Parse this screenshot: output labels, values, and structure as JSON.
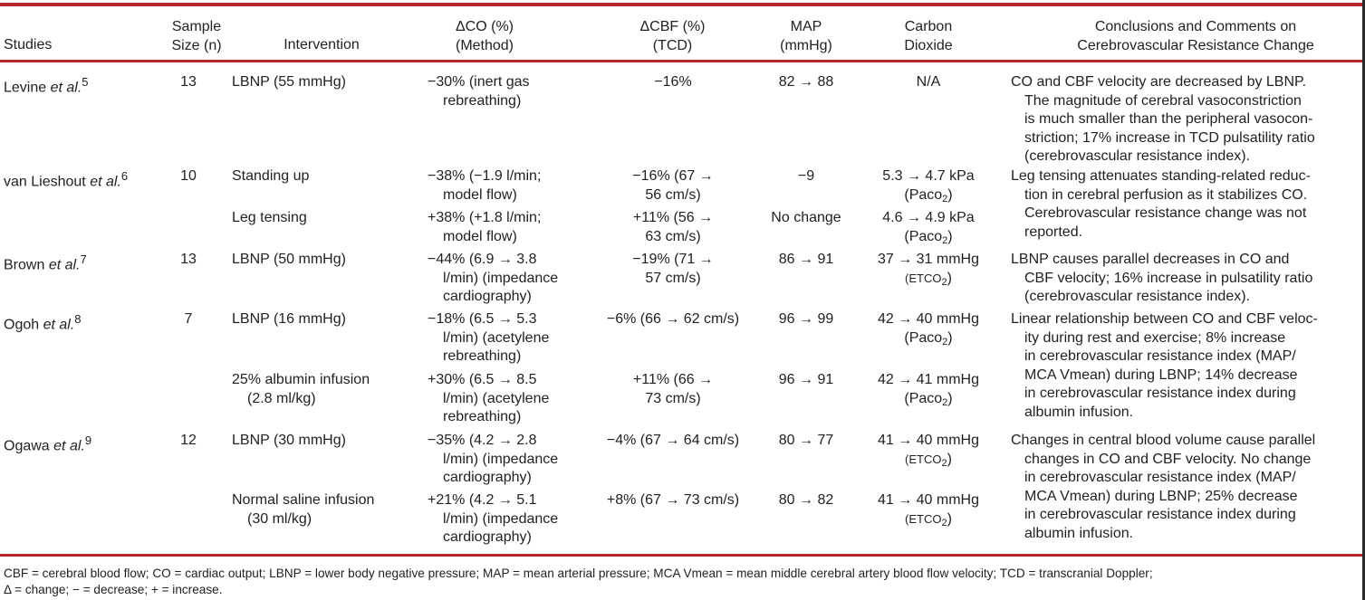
{
  "headers": {
    "studies": "Studies",
    "sample_1": "Sample",
    "sample_2": "Size (n)",
    "intervention": "Intervention",
    "co_1": "ΔCO (%)",
    "co_2": "(Method)",
    "cbf_1": "ΔCBF (%)",
    "cbf_2": "(TCD)",
    "map_1": "MAP",
    "map_2": "(mmHg)",
    "co2_1": "Carbon",
    "co2_2": "Dioxide",
    "concl_1": "Conclusions and Comments on",
    "concl_2": "Cerebrovascular Resistance Change"
  },
  "studies": [
    {
      "name": "Levine",
      "etal": "et al.",
      "ref": "5",
      "n": "13"
    },
    {
      "name": "van Lieshout",
      "etal": "et al.",
      "ref": "6",
      "n": "10"
    },
    {
      "name": "Brown",
      "etal": "et al.",
      "ref": "7",
      "n": "13"
    },
    {
      "name": "Ogoh",
      "etal": "et al.",
      "ref": "8",
      "n": "7"
    },
    {
      "name": "Ogawa",
      "etal": "et al.",
      "ref": "9",
      "n": "12"
    }
  ],
  "rows": [
    {
      "intervention": [
        "LBNP (55 mmHg)"
      ],
      "co": [
        "−30% (inert gas",
        "rebreathing)"
      ],
      "cbf": [
        "−16%"
      ],
      "map": "82 → 88",
      "co2": "N/A",
      "co2_method": ""
    },
    {
      "intervention": [
        "Standing up"
      ],
      "co": [
        "−38% (−1.9 l/min;",
        "model flow)"
      ],
      "cbf": [
        "−16% (67 →",
        "56 cm/s)"
      ],
      "map": "−9",
      "co2": "5.3 → 4.7 kPa",
      "co2_method": "(Paco",
      "co2_sub": "2",
      "co2_close": ")"
    },
    {
      "intervention": [
        "Leg tensing"
      ],
      "co": [
        "+38% (+1.8 l/min;",
        "model flow)"
      ],
      "cbf": [
        "+11% (56 →",
        "63 cm/s)"
      ],
      "map": "No change",
      "co2": "4.6 → 4.9 kPa",
      "co2_method": "(Paco",
      "co2_sub": "2",
      "co2_close": ")"
    },
    {
      "intervention": [
        "LBNP (50 mmHg)"
      ],
      "co": [
        "−44% (6.9 → 3.8",
        "l/min) (impedance",
        "cardiography)"
      ],
      "cbf": [
        "−19% (71 →",
        "57 cm/s)"
      ],
      "map": "86 → 91",
      "co2": "37 → 31 mmHg",
      "co2_method": "(ETCO",
      "co2_sub": "2",
      "co2_close": ")"
    },
    {
      "intervention": [
        "LBNP (16 mmHg)"
      ],
      "co": [
        "−18% (6.5 → 5.3",
        "l/min) (acetylene",
        "rebreathing)"
      ],
      "cbf": [
        "−6% (66 → 62 cm/s)"
      ],
      "map": "96 → 99",
      "co2": "42 → 40 mmHg",
      "co2_method": "(Paco",
      "co2_sub": "2",
      "co2_close": ")"
    },
    {
      "intervention": [
        "25% albumin infusion",
        "(2.8 ml/kg)"
      ],
      "co": [
        "+30% (6.5 → 8.5",
        "l/min) (acetylene",
        "rebreathing)"
      ],
      "cbf": [
        "+11% (66 →",
        "73 cm/s)"
      ],
      "map": "96 → 91",
      "co2": "42 → 41 mmHg",
      "co2_method": "(Paco",
      "co2_sub": "2",
      "co2_close": ")"
    },
    {
      "intervention": [
        "LBNP (30 mmHg)"
      ],
      "co": [
        "−35% (4.2 → 2.8",
        "l/min) (impedance",
        "cardiography)"
      ],
      "cbf": [
        "−4% (67 → 64 cm/s)"
      ],
      "map": "80 → 77",
      "co2": "41 → 40 mmHg",
      "co2_method": "(ETCO",
      "co2_sub": "2",
      "co2_close": ")"
    },
    {
      "intervention": [
        "Normal saline infusion",
        "(30 ml/kg)"
      ],
      "co": [
        "+21% (4.2 → 5.1",
        "l/min) (impedance",
        "cardiography)"
      ],
      "cbf": [
        "+8% (67 → 73 cm/s)"
      ],
      "map": "80 → 82",
      "co2": "41 → 40 mmHg",
      "co2_method": "(ETCO",
      "co2_sub": "2",
      "co2_close": ")"
    }
  ],
  "conclusions": [
    [
      "CO and CBF velocity are decreased by LBNP.",
      "The magnitude of cerebral vasoconstriction",
      "is much smaller than the peripheral vasocon-",
      "striction; 17% increase in TCD pulsatility ratio",
      "(cerebrovascular resistance index)."
    ],
    [
      "Leg tensing attenuates standing-related reduc-",
      "tion in cerebral perfusion as it stabilizes CO.",
      "Cerebrovascular resistance change was not",
      "reported."
    ],
    [
      "LBNP causes parallel decreases in CO and",
      "CBF velocity; 16% increase in pulsatility ratio",
      "(cerebrovascular resistance index)."
    ],
    [
      "Linear relationship between CO and CBF veloc-",
      "ity during rest and exercise; 8% increase",
      "in cerebrovascular resistance index (MAP/",
      "MCA Vmean) during LBNP; 14% decrease",
      "in cerebrovascular resistance index during",
      "albumin infusion."
    ],
    [
      "Changes in central blood volume cause parallel",
      "changes in CO and CBF velocity. No change",
      "in cerebrovascular resistance index (MAP/",
      "MCA Vmean) during LBNP; 25% decrease",
      "in cerebrovascular resistance index during",
      "albumin infusion."
    ]
  ],
  "footnote": [
    "CBF = cerebral blood flow; CO = cardiac output; LBNP = lower body negative pressure; MAP = mean arterial pressure; MCA Vmean = mean middle cerebral artery blood flow velocity; TCD = transcranial Doppler;",
    "Δ = change; − = decrease; + = increase."
  ]
}
